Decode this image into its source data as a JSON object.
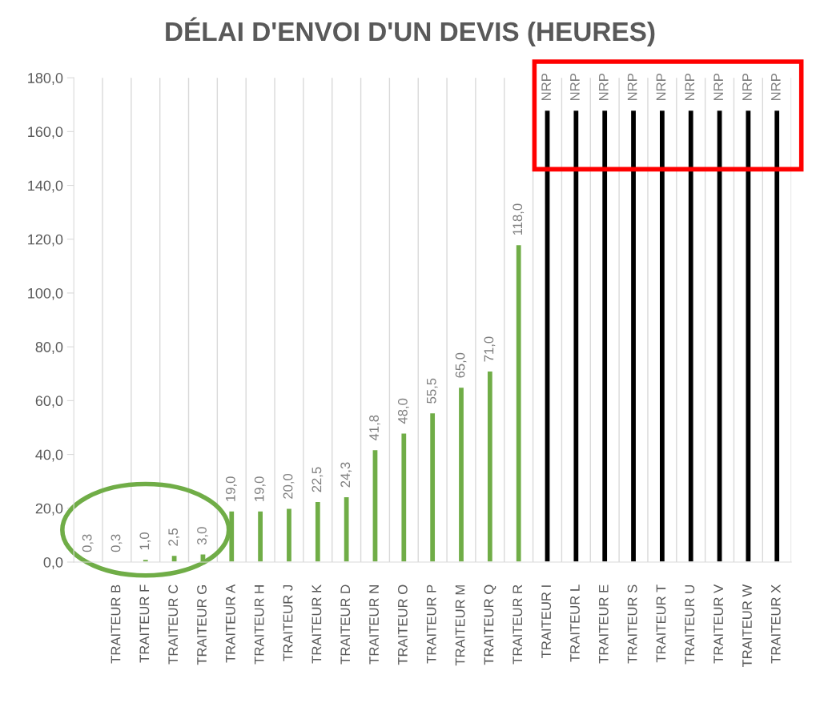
{
  "chart_data": {
    "type": "bar",
    "title": "DÉLAI D'ENVOI D'UN DEVIS (HEURES)",
    "categories": [
      null,
      "TRAITEUR B",
      "TRAITEUR F",
      "TRAITEUR C",
      "TRAITEUR G",
      "TRAITEUR A",
      "TRAITEUR H",
      "TRAITEUR J",
      "TRAITEUR K",
      "TRAITEUR D",
      "TRAITEUR N",
      "TRAITEUR O",
      "TRAITEUR P",
      "TRAITEUR M",
      "TRAITEUR Q",
      "TRAITEUR R",
      "TRAITEUR I",
      "TRAITEUR L",
      "TRAITEUR E",
      "TRAITEUR S",
      "TRAITEUR T",
      "TRAITEUR U",
      "TRAITEUR V",
      "TRAITEUR W",
      "TRAITEUR X"
    ],
    "values": [
      0.3,
      0.3,
      1.0,
      2.5,
      3.0,
      19.0,
      19.0,
      20.0,
      22.5,
      24.3,
      41.8,
      48.0,
      55.5,
      65.0,
      71.0,
      118.0,
      168,
      168,
      168,
      168,
      168,
      168,
      168,
      168,
      168
    ],
    "value_labels": [
      "0,3",
      "0,3",
      "1,0",
      "2,5",
      "3,0",
      "19,0",
      "19,0",
      "20,0",
      "22,5",
      "24,3",
      "41,8",
      "48,0",
      "55,5",
      "65,0",
      "71,0",
      "118,0",
      "NRP",
      "NRP",
      "NRP",
      "NRP",
      "NRP",
      "NRP",
      "NRP",
      "NRP",
      "NRP"
    ],
    "colors": [
      "#70ad47",
      "#70ad47",
      "#70ad47",
      "#70ad47",
      "#70ad47",
      "#70ad47",
      "#70ad47",
      "#70ad47",
      "#70ad47",
      "#70ad47",
      "#70ad47",
      "#70ad47",
      "#70ad47",
      "#70ad47",
      "#70ad47",
      "#70ad47",
      "#000000",
      "#000000",
      "#000000",
      "#000000",
      "#000000",
      "#000000",
      "#000000",
      "#000000",
      "#000000"
    ],
    "ylim": [
      0,
      180
    ],
    "yticks": [
      {
        "value": 0,
        "label": "0,0"
      },
      {
        "value": 20,
        "label": "20,0"
      },
      {
        "value": 40,
        "label": "40,0"
      },
      {
        "value": 60,
        "label": "60,0"
      },
      {
        "value": 80,
        "label": "80,0"
      },
      {
        "value": 100,
        "label": "100,0"
      },
      {
        "value": 120,
        "label": "120,0"
      },
      {
        "value": 140,
        "label": "140,0"
      },
      {
        "value": 160,
        "label": "160,0"
      },
      {
        "value": 180,
        "label": "180,0"
      }
    ],
    "grid": "x",
    "legend": false
  }
}
